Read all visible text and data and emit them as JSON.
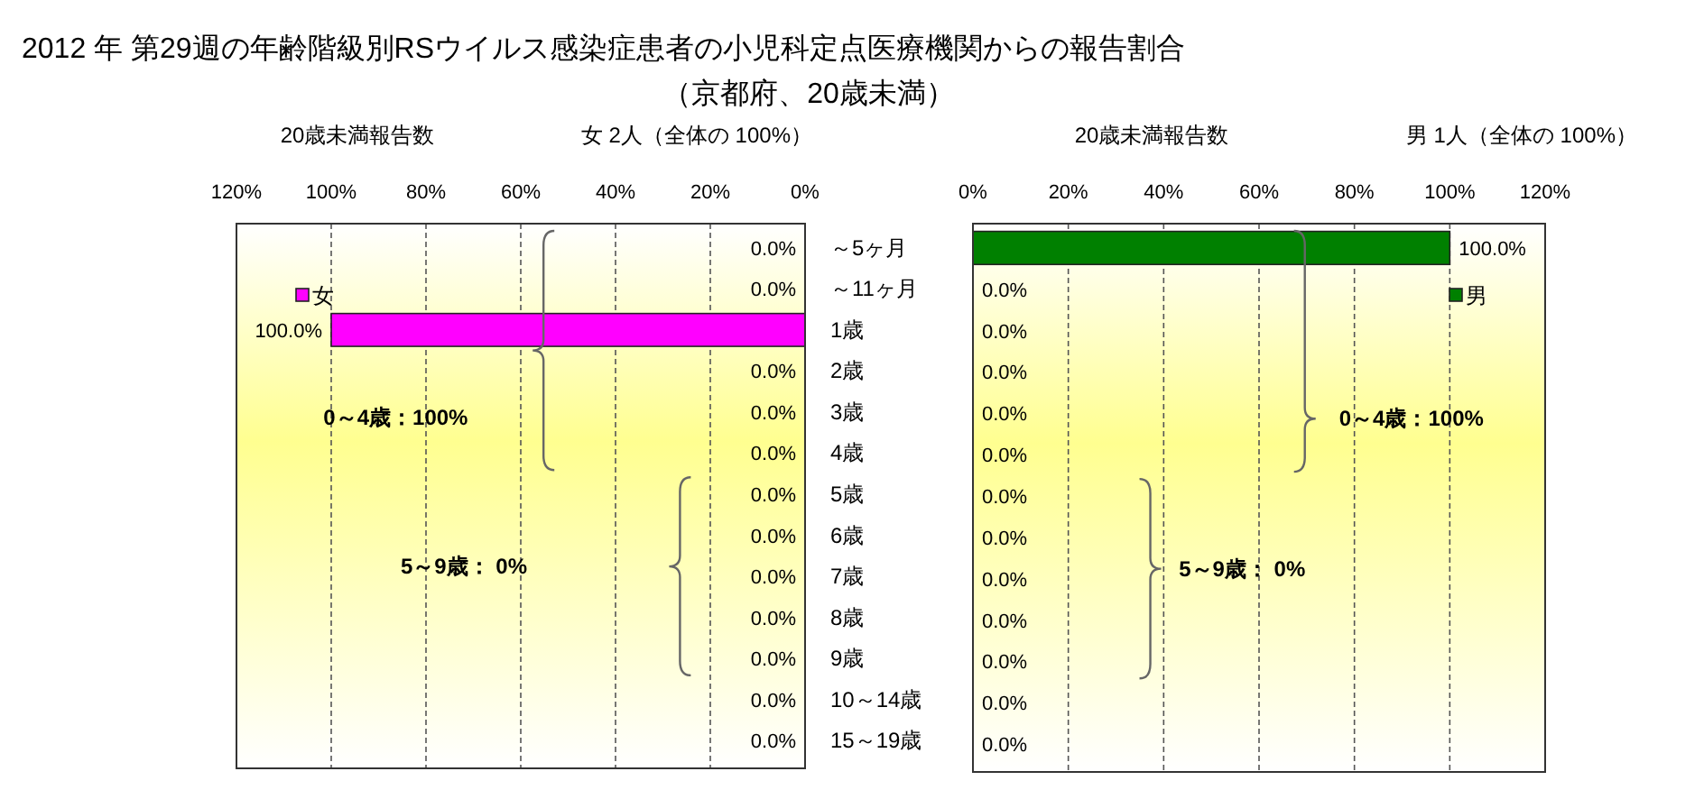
{
  "chart_data": [
    {
      "type": "other",
      "title": "2012 年 第29週の年齢階級別RSウイルス感染症患者の小児科定点医療機関からの報告割合",
      "subtitle": "（京都府、20歳未満）"
    },
    {
      "type": "bar",
      "orientation": "horizontal",
      "title": "20歳未満報告数",
      "subtitle": "女 2人（全体の 100%）",
      "categories": [
        "～5ヶ月",
        "～11ヶ月",
        "1歳",
        "2歳",
        "3歳",
        "4歳",
        "5歳",
        "6歳",
        "7歳",
        "8歳",
        "9歳",
        "10～14歳",
        "15～19歳"
      ],
      "series": [
        {
          "name": "女",
          "color": "#ff00ff",
          "values": [
            0,
            0,
            100,
            0,
            0,
            0,
            0,
            0,
            0,
            0,
            0,
            0,
            0
          ],
          "value_labels": [
            "0.0%",
            "0.0%",
            "100.0%",
            "0.0%",
            "0.0%",
            "0.0%",
            "0.0%",
            "0.0%",
            "0.0%",
            "0.0%",
            "0.0%",
            "0.0%",
            "0.0%"
          ]
        }
      ],
      "xlim": [
        120,
        0
      ],
      "xticks": [
        {
          "value": 120,
          "label": "120%"
        },
        {
          "value": 100,
          "label": "100%"
        },
        {
          "value": 80,
          "label": "80%"
        },
        {
          "value": 60,
          "label": "60%"
        },
        {
          "value": 40,
          "label": "40%"
        },
        {
          "value": 20,
          "label": "20%"
        },
        {
          "value": 0,
          "label": "0%"
        }
      ],
      "grid": "x",
      "legend": "top left",
      "annotations": [
        "0～4歳：100%",
        "5～9歳： 0%"
      ]
    },
    {
      "type": "bar",
      "orientation": "horizontal",
      "title": "20歳未満報告数",
      "subtitle": "男 1人（全体の 100%）",
      "categories": [
        "～5ヶ月",
        "～11ヶ月",
        "1歳",
        "2歳",
        "3歳",
        "4歳",
        "5歳",
        "6歳",
        "7歳",
        "8歳",
        "9歳",
        "10～14歳",
        "15～19歳"
      ],
      "series": [
        {
          "name": "男",
          "color": "#008000",
          "values": [
            100,
            0,
            0,
            0,
            0,
            0,
            0,
            0,
            0,
            0,
            0,
            0,
            0
          ],
          "value_labels": [
            "100.0%",
            "0.0%",
            "0.0%",
            "0.0%",
            "0.0%",
            "0.0%",
            "0.0%",
            "0.0%",
            "0.0%",
            "0.0%",
            "0.0%",
            "0.0%",
            "0.0%"
          ]
        }
      ],
      "xlim": [
        0,
        120
      ],
      "xticks": [
        {
          "value": 0,
          "label": "0%"
        },
        {
          "value": 20,
          "label": "20%"
        },
        {
          "value": 40,
          "label": "40%"
        },
        {
          "value": 60,
          "label": "60%"
        },
        {
          "value": 80,
          "label": "80%"
        },
        {
          "value": 100,
          "label": "100%"
        },
        {
          "value": 120,
          "label": "120%"
        }
      ],
      "grid": "x",
      "legend": "top right",
      "tick_labels": "x",
      "annotations": [
        "0～4歳：100%",
        "5～9歳： 0%"
      ]
    }
  ]
}
